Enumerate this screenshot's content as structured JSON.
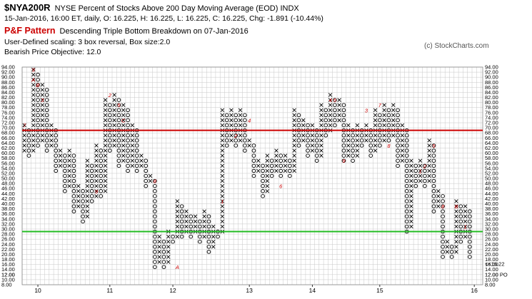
{
  "header": {
    "symbol": "$NYA200R",
    "description": "NYSE Percent of Stocks Above 200 Day Moving Average (EOD)  INDX",
    "quote_line": "15-Jan-2016, 16:00 ET, daily, O: 16.225, H: 16.225, L: 16.225, C: 16.225, Chg: -1.891 (-10.44%)",
    "pattern_label": "P&F Pattern",
    "pattern_desc": "Descending Triple Bottom Breakdown on 07-Jan-2016",
    "scaling": "User-Defined scaling: 3 box reversal, Box size:2.0",
    "objective": "Bearish Price Objective: 12.0",
    "copyright": "(c) StockCharts.com"
  },
  "chart_data": {
    "type": "point-and-figure",
    "title": "$NYA200R",
    "box_size": 2.0,
    "reversal": 3,
    "ylim": [
      8,
      94
    ],
    "y_ticks": [
      8,
      10,
      12,
      14,
      16,
      18,
      20,
      22,
      24,
      26,
      28,
      30,
      32,
      34,
      36,
      38,
      40,
      42,
      44,
      46,
      48,
      50,
      52,
      54,
      56,
      58,
      60,
      62,
      64,
      66,
      68,
      70,
      72,
      74,
      76,
      78,
      80,
      82,
      84,
      86,
      88,
      90,
      92,
      94
    ],
    "y_tick_labels": [
      "8.00",
      "10.00",
      "12.00",
      "14.00",
      "16.00",
      "18.00",
      "20.00",
      "22.00",
      "24.00",
      "26.00",
      "28.00",
      "30.00",
      "32.00",
      "34.00",
      "36.00",
      "38.00",
      "40.00",
      "42.00",
      "44.00",
      "46.00",
      "48.00",
      "50.00",
      "52.00",
      "54.00",
      "56.00",
      "58.00",
      "60.00",
      "62.00",
      "64.00",
      "66.00",
      "68.00",
      "70.00",
      "72.00",
      "74.00",
      "76.00",
      "78.00",
      "80.00",
      "82.00",
      "84.00",
      "86.00",
      "88.00",
      "90.00",
      "92.00",
      "94.00"
    ],
    "year_labels": [
      {
        "label": "10",
        "column": 3
      },
      {
        "label": "11",
        "column": 19
      },
      {
        "label": "12",
        "column": 33
      },
      {
        "label": "13",
        "column": 50
      },
      {
        "label": "14",
        "column": 64
      },
      {
        "label": "15",
        "column": 79
      },
      {
        "label": "16",
        "column": 100
      }
    ],
    "columns": [
      {
        "dir": "X",
        "low": 60,
        "high": 70
      },
      {
        "dir": "O",
        "low": 58,
        "high": 68
      },
      {
        "dir": "X",
        "low": 60,
        "high": 92
      },
      {
        "dir": "O",
        "low": 62,
        "high": 90
      },
      {
        "dir": "X",
        "low": 64,
        "high": 86
      },
      {
        "dir": "O",
        "low": 60,
        "high": 84
      },
      {
        "dir": "X",
        "low": 62,
        "high": 70
      },
      {
        "dir": "O",
        "low": 52,
        "high": 68
      },
      {
        "dir": "X",
        "low": 54,
        "high": 60
      },
      {
        "dir": "O",
        "low": 44,
        "high": 58
      },
      {
        "dir": "X",
        "low": 46,
        "high": 60
      },
      {
        "dir": "O",
        "low": 36,
        "high": 58
      },
      {
        "dir": "X",
        "low": 38,
        "high": 46
      },
      {
        "dir": "O",
        "low": 32,
        "high": 44
      },
      {
        "dir": "X",
        "low": 34,
        "high": 56
      },
      {
        "dir": "O",
        "low": 40,
        "high": 54
      },
      {
        "dir": "X",
        "low": 42,
        "high": 62
      },
      {
        "dir": "O",
        "low": 42,
        "high": 60
      },
      {
        "dir": "X",
        "low": 44,
        "high": 80
      },
      {
        "dir": "O",
        "low": 60,
        "high": 78
      },
      {
        "dir": "X",
        "low": 62,
        "high": 82
      },
      {
        "dir": "O",
        "low": 54,
        "high": 80
      },
      {
        "dir": "X",
        "low": 56,
        "high": 78
      },
      {
        "dir": "O",
        "low": 52,
        "high": 76
      },
      {
        "dir": "X",
        "low": 54,
        "high": 70
      },
      {
        "dir": "O",
        "low": 52,
        "high": 68
      },
      {
        "dir": "X",
        "low": 54,
        "high": 58
      },
      {
        "dir": "O",
        "low": 46,
        "high": 56
      },
      {
        "dir": "X",
        "low": 48,
        "high": 50
      },
      {
        "dir": "O",
        "low": 14,
        "high": 48
      },
      {
        "dir": "X",
        "low": 16,
        "high": 26
      },
      {
        "dir": "O",
        "low": 14,
        "high": 24
      },
      {
        "dir": "X",
        "low": 16,
        "high": 28
      },
      {
        "dir": "O",
        "low": 24,
        "high": 26
      },
      {
        "dir": "X",
        "low": 26,
        "high": 40
      },
      {
        "dir": "O",
        "low": 26,
        "high": 38
      },
      {
        "dir": "X",
        "low": 28,
        "high": 36
      },
      {
        "dir": "O",
        "low": 26,
        "high": 34
      },
      {
        "dir": "X",
        "low": 28,
        "high": 34
      },
      {
        "dir": "O",
        "low": 24,
        "high": 32
      },
      {
        "dir": "X",
        "low": 26,
        "high": 36
      },
      {
        "dir": "O",
        "low": 20,
        "high": 34
      },
      {
        "dir": "X",
        "low": 22,
        "high": 30
      },
      {
        "dir": "O",
        "low": 26,
        "high": 28
      },
      {
        "dir": "X",
        "low": 28,
        "high": 76
      },
      {
        "dir": "O",
        "low": 62,
        "high": 74
      },
      {
        "dir": "X",
        "low": 64,
        "high": 76
      },
      {
        "dir": "O",
        "low": 62,
        "high": 74
      },
      {
        "dir": "X",
        "low": 64,
        "high": 76
      },
      {
        "dir": "O",
        "low": 60,
        "high": 74
      },
      {
        "dir": "X",
        "low": 62,
        "high": 64
      },
      {
        "dir": "O",
        "low": 50,
        "high": 62
      },
      {
        "dir": "X",
        "low": 52,
        "high": 56
      },
      {
        "dir": "O",
        "low": 42,
        "high": 54
      },
      {
        "dir": "X",
        "low": 44,
        "high": 58
      },
      {
        "dir": "O",
        "low": 50,
        "high": 56
      },
      {
        "dir": "X",
        "low": 52,
        "high": 60
      },
      {
        "dir": "O",
        "low": 50,
        "high": 58
      },
      {
        "dir": "X",
        "low": 52,
        "high": 58
      },
      {
        "dir": "O",
        "low": 50,
        "high": 56
      },
      {
        "dir": "X",
        "low": 52,
        "high": 76
      },
      {
        "dir": "O",
        "low": 62,
        "high": 74
      },
      {
        "dir": "X",
        "low": 64,
        "high": 72
      },
      {
        "dir": "O",
        "low": 58,
        "high": 70
      },
      {
        "dir": "X",
        "low": 60,
        "high": 70
      },
      {
        "dir": "O",
        "low": 56,
        "high": 68
      },
      {
        "dir": "X",
        "low": 58,
        "high": 78
      },
      {
        "dir": "O",
        "low": 66,
        "high": 76
      },
      {
        "dir": "X",
        "low": 68,
        "high": 82
      },
      {
        "dir": "O",
        "low": 70,
        "high": 80
      },
      {
        "dir": "X",
        "low": 72,
        "high": 80
      },
      {
        "dir": "O",
        "low": 56,
        "high": 78
      },
      {
        "dir": "X",
        "low": 58,
        "high": 70
      },
      {
        "dir": "O",
        "low": 56,
        "high": 68
      },
      {
        "dir": "X",
        "low": 58,
        "high": 70
      },
      {
        "dir": "O",
        "low": 62,
        "high": 68
      },
      {
        "dir": "X",
        "low": 64,
        "high": 70
      },
      {
        "dir": "O",
        "low": 58,
        "high": 68
      },
      {
        "dir": "X",
        "low": 60,
        "high": 76
      },
      {
        "dir": "O",
        "low": 62,
        "high": 74
      },
      {
        "dir": "X",
        "low": 64,
        "high": 78
      },
      {
        "dir": "O",
        "low": 64,
        "high": 76
      },
      {
        "dir": "X",
        "low": 66,
        "high": 78
      },
      {
        "dir": "O",
        "low": 54,
        "high": 76
      },
      {
        "dir": "X",
        "low": 56,
        "high": 70
      },
      {
        "dir": "O",
        "low": 28,
        "high": 68
      },
      {
        "dir": "X",
        "low": 30,
        "high": 56
      },
      {
        "dir": "O",
        "low": 46,
        "high": 54
      },
      {
        "dir": "X",
        "low": 48,
        "high": 56
      },
      {
        "dir": "O",
        "low": 46,
        "high": 54
      },
      {
        "dir": "X",
        "low": 48,
        "high": 64
      },
      {
        "dir": "O",
        "low": 36,
        "high": 62
      },
      {
        "dir": "X",
        "low": 38,
        "high": 44
      },
      {
        "dir": "O",
        "low": 18,
        "high": 42
      },
      {
        "dir": "X",
        "low": 20,
        "high": 24
      },
      {
        "dir": "O",
        "low": 18,
        "high": 22
      },
      {
        "dir": "X",
        "low": 20,
        "high": 40
      },
      {
        "dir": "O",
        "low": 24,
        "high": 38
      },
      {
        "dir": "X",
        "low": 26,
        "high": 38
      },
      {
        "dir": "O",
        "low": 18,
        "high": 36
      }
    ],
    "month_markers": [
      {
        "col": 0,
        "value": 70,
        "label": "7"
      },
      {
        "col": 2,
        "value": 92,
        "label": "9"
      },
      {
        "col": 2,
        "value": 88,
        "label": "A"
      },
      {
        "col": 3,
        "value": 86,
        "label": "B"
      },
      {
        "col": 4,
        "value": 80,
        "label": "3"
      },
      {
        "col": 16,
        "value": 44,
        "label": "9"
      },
      {
        "col": 19,
        "value": 82,
        "label": "2"
      },
      {
        "col": 21,
        "value": 78,
        "label": "5"
      },
      {
        "col": 22,
        "value": 72,
        "label": "C"
      },
      {
        "col": 29,
        "value": 48,
        "label": "8"
      },
      {
        "col": 34,
        "value": 14,
        "label": "A"
      },
      {
        "col": 44,
        "value": 40,
        "label": "1"
      },
      {
        "col": 47,
        "value": 66,
        "label": "2"
      },
      {
        "col": 50,
        "value": 72,
        "label": "4"
      },
      {
        "col": 57,
        "value": 46,
        "label": "6"
      },
      {
        "col": 68,
        "value": 80,
        "label": "4"
      },
      {
        "col": 69,
        "value": 80,
        "label": "5"
      },
      {
        "col": 71,
        "value": 56,
        "label": "9"
      },
      {
        "col": 76,
        "value": 76,
        "label": "3"
      },
      {
        "col": 79,
        "value": 78,
        "label": "7"
      },
      {
        "col": 81,
        "value": 62,
        "label": "8"
      },
      {
        "col": 88,
        "value": 52,
        "label": "1"
      },
      {
        "col": 89,
        "value": 54,
        "label": "2"
      },
      {
        "col": 91,
        "value": 62,
        "label": "5"
      },
      {
        "col": 93,
        "value": 38,
        "label": "8"
      },
      {
        "col": 96,
        "value": 38,
        "label": "B"
      },
      {
        "col": 98,
        "value": 30,
        "label": "1"
      }
    ],
    "current_price": {
      "label": "<<16.22",
      "value": 16.22
    },
    "price_objective": {
      "label": "12.00 PO",
      "value": 12.0
    },
    "bullish_support_level": 29.0,
    "bearish_resistance_level": 69.0,
    "colors": {
      "x_mark": "#000000",
      "o_mark": "#000000",
      "red_line": "#cc0000",
      "green_line": "#22bb22",
      "month_marker": "#cc0000",
      "grid": "#c8c8c8"
    },
    "grid": true
  }
}
